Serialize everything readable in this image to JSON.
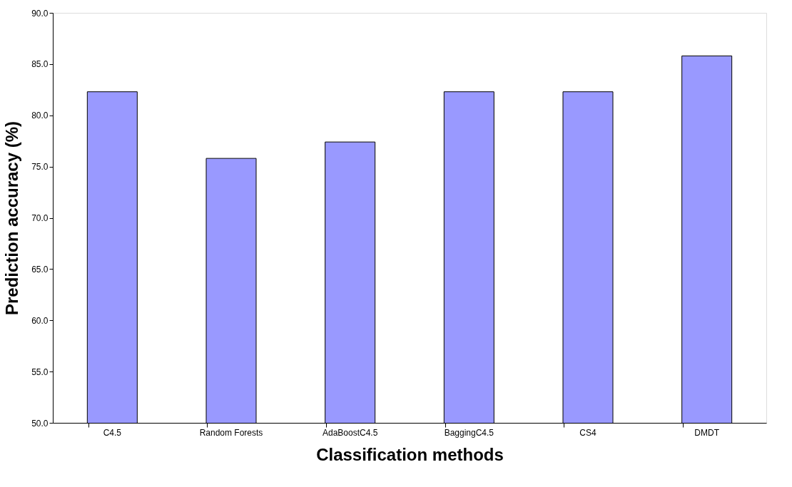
{
  "chart_data": {
    "type": "bar",
    "xlabel": "Classification methods",
    "ylabel": "Prediction accuracy (%)",
    "categories": [
      "C4.5",
      "Random Forests",
      "AdaBoostC4.5",
      "BaggingC4.5",
      "CS4",
      "DMDT"
    ],
    "values": [
      82.3,
      75.8,
      77.4,
      82.3,
      82.3,
      85.8
    ],
    "color": "#9999ff",
    "ylim": [
      50,
      90
    ],
    "yticks": [
      {
        "value": 50,
        "label": "50.0"
      },
      {
        "value": 55,
        "label": "55.0"
      },
      {
        "value": 60,
        "label": "60.0"
      },
      {
        "value": 65,
        "label": "65.0"
      },
      {
        "value": 70,
        "label": "70.0"
      },
      {
        "value": 75,
        "label": "75.0"
      },
      {
        "value": 80,
        "label": "80.0"
      },
      {
        "value": 85,
        "label": "85.0"
      },
      {
        "value": 90,
        "label": "90.0"
      }
    ],
    "grid": false
  }
}
